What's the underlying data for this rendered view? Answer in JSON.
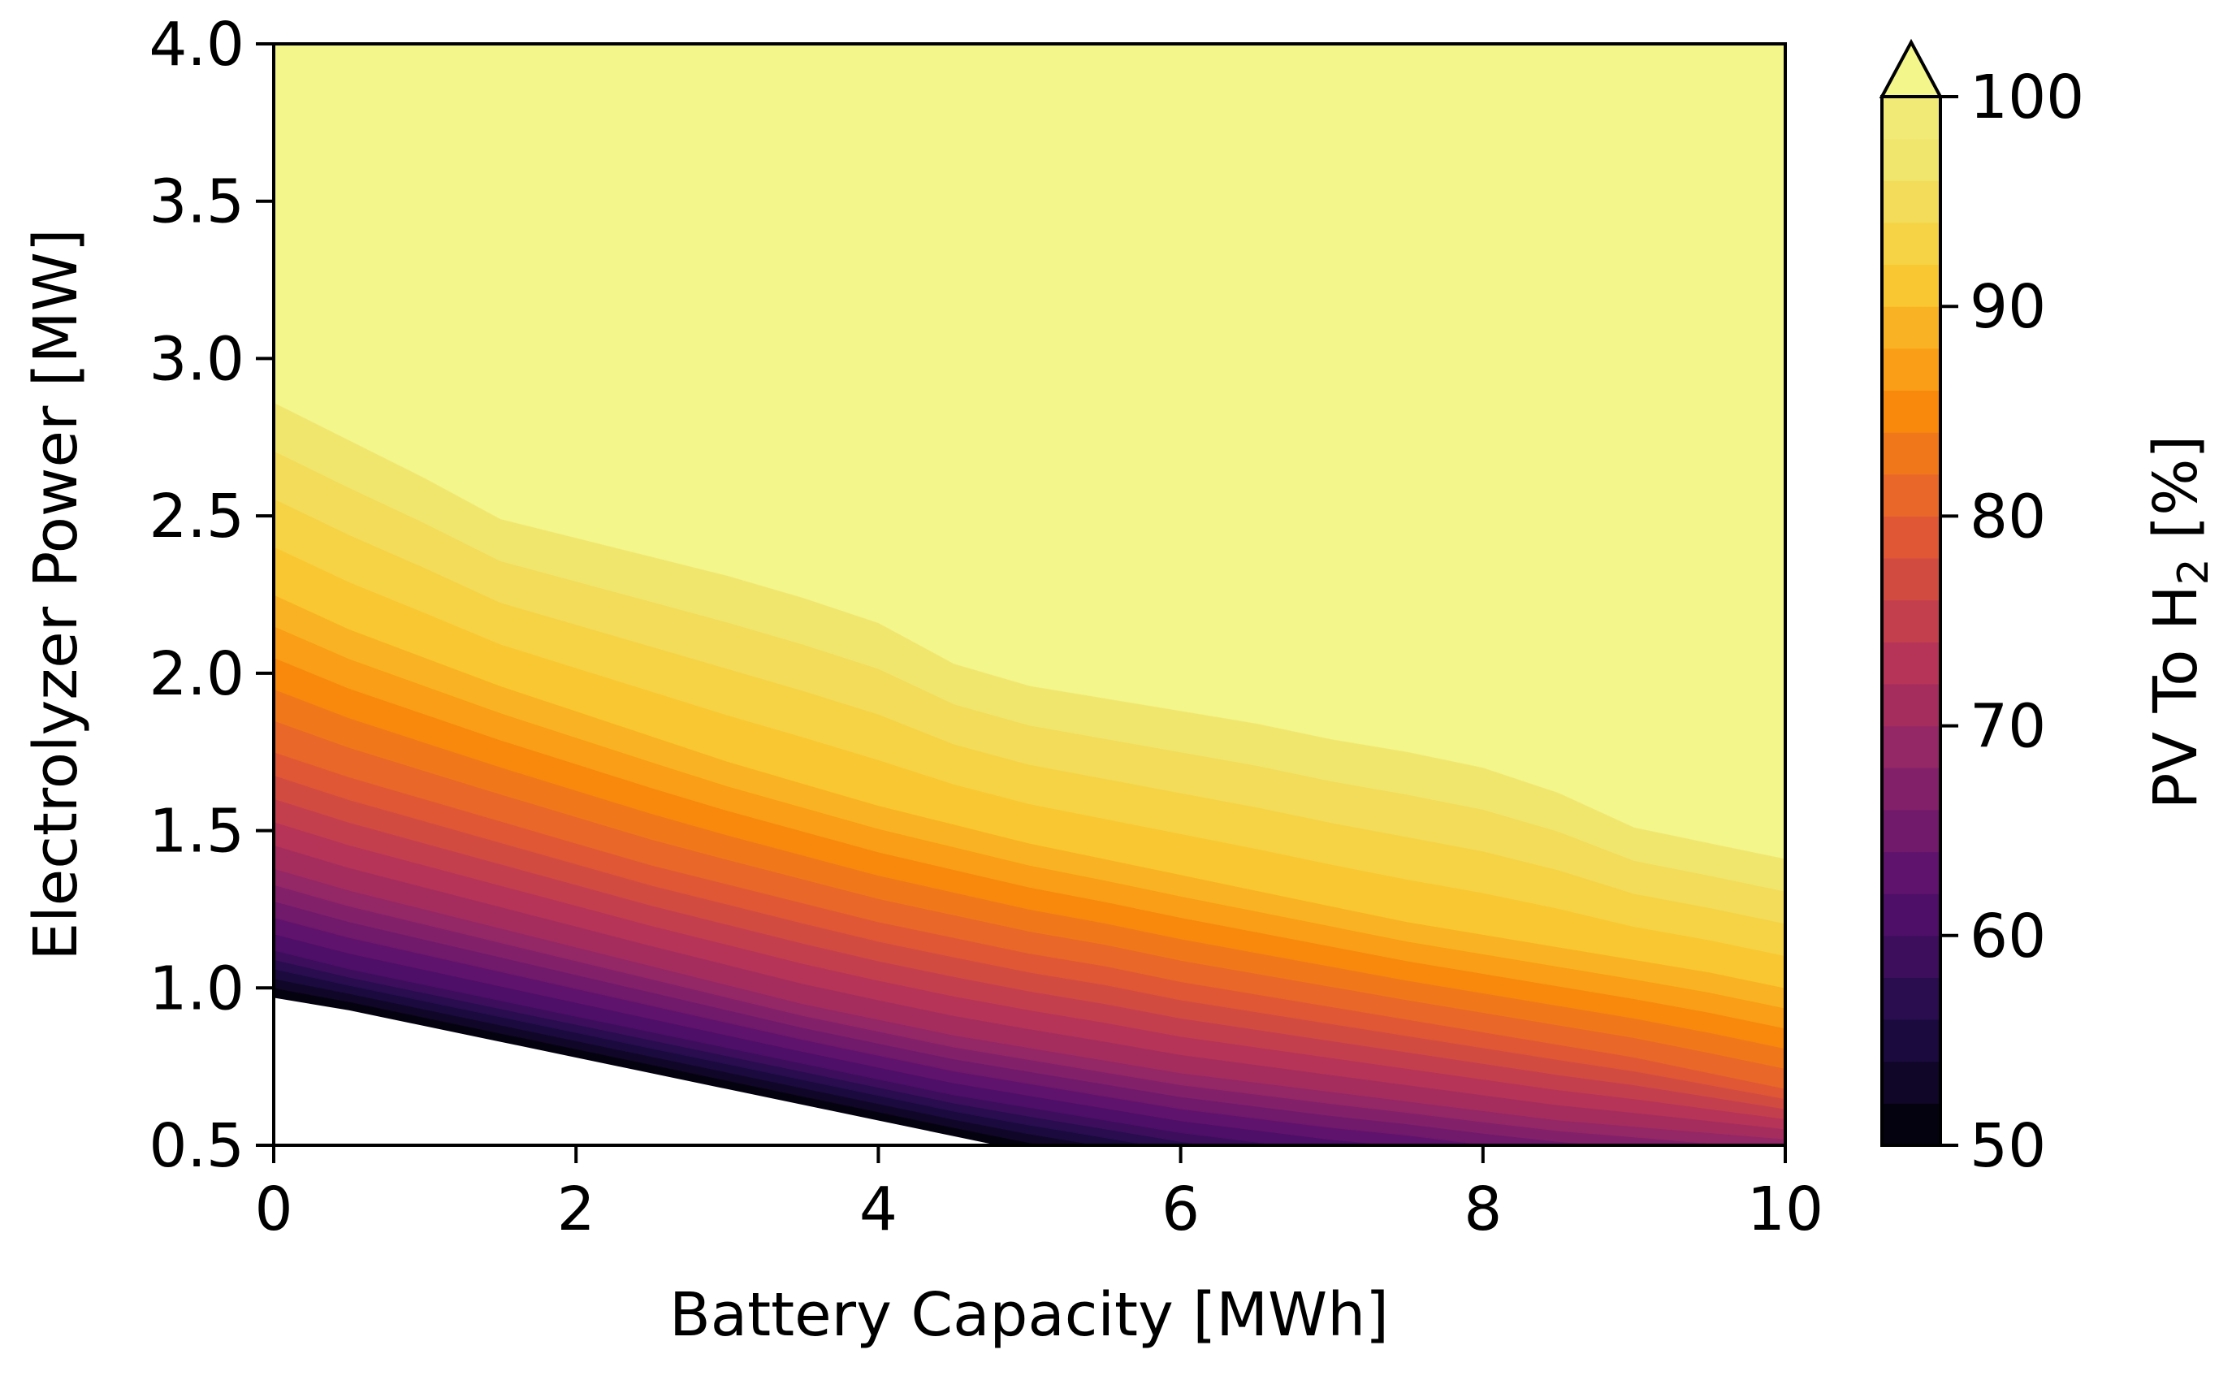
{
  "chart_data": {
    "type": "contour",
    "title": "",
    "xlabel": "Battery Capacity [MWh]",
    "ylabel": "Electrolyzer Power [MW]",
    "xlim": [
      0,
      10
    ],
    "ylim": [
      0.5,
      4.0
    ],
    "xticks": [
      "0",
      "2",
      "4",
      "6",
      "8",
      "10"
    ],
    "xtick_values": [
      0,
      2,
      4,
      6,
      8,
      10
    ],
    "yticks": [
      "0.5",
      "1.0",
      "1.5",
      "2.0",
      "2.5",
      "3.0",
      "3.5",
      "4.0"
    ],
    "ytick_values": [
      0.5,
      1.0,
      1.5,
      2.0,
      2.5,
      3.0,
      3.5,
      4.0
    ],
    "colorbar": {
      "label_main": "PV To H",
      "label_sub": "2",
      "label_tail": " [%]",
      "range": [
        50,
        100
      ],
      "ticks": [
        "50",
        "60",
        "70",
        "80",
        "90",
        "100"
      ],
      "tick_values": [
        50,
        60,
        70,
        80,
        90,
        100
      ],
      "extend": "max",
      "colormap": "inferno",
      "levels": [
        50,
        52,
        54,
        56,
        58,
        60,
        62,
        64,
        66,
        68,
        70,
        72,
        74,
        76,
        78,
        80,
        82,
        84,
        86,
        88,
        90,
        92,
        94,
        96,
        98,
        100
      ]
    },
    "x": [
      0,
      0.5,
      1,
      1.5,
      2,
      2.5,
      3,
      3.5,
      4,
      4.5,
      5,
      5.5,
      6,
      6.5,
      7,
      7.5,
      8,
      8.5,
      9,
      9.5,
      10
    ],
    "contour_lines": [
      {
        "level": 50,
        "y": [
          0.97,
          0.93,
          0.88,
          0.83,
          0.78,
          0.73,
          0.68,
          0.63,
          0.58,
          0.53,
          0.48,
          0.44,
          0.4,
          0.36,
          0.32,
          0.28,
          0.24,
          0.2,
          0.16,
          0.12,
          0.08
        ]
      },
      {
        "level": 60,
        "y": [
          1.12,
          1.06,
          1.01,
          0.96,
          0.91,
          0.86,
          0.81,
          0.76,
          0.71,
          0.66,
          0.62,
          0.58,
          0.54,
          0.51,
          0.48,
          0.46,
          0.43,
          0.41,
          0.39,
          0.37,
          0.36
        ]
      },
      {
        "level": 70,
        "y": [
          1.38,
          1.31,
          1.25,
          1.19,
          1.13,
          1.07,
          1.01,
          0.95,
          0.9,
          0.85,
          0.81,
          0.77,
          0.73,
          0.7,
          0.67,
          0.64,
          0.61,
          0.58,
          0.56,
          0.54,
          0.52
        ]
      },
      {
        "level": 80,
        "y": [
          1.75,
          1.67,
          1.6,
          1.53,
          1.46,
          1.39,
          1.33,
          1.27,
          1.21,
          1.16,
          1.11,
          1.07,
          1.02,
          0.98,
          0.94,
          0.9,
          0.86,
          0.82,
          0.78,
          0.73,
          0.68
        ]
      },
      {
        "level": 90,
        "y": [
          2.25,
          2.14,
          2.05,
          1.96,
          1.88,
          1.8,
          1.72,
          1.65,
          1.58,
          1.52,
          1.46,
          1.41,
          1.36,
          1.31,
          1.26,
          1.21,
          1.17,
          1.13,
          1.09,
          1.05,
          1.0
        ]
      },
      {
        "level": 98,
        "y": [
          2.86,
          2.74,
          2.62,
          2.49,
          2.43,
          2.37,
          2.31,
          2.24,
          2.16,
          2.03,
          1.96,
          1.92,
          1.88,
          1.84,
          1.79,
          1.75,
          1.7,
          1.62,
          1.51,
          1.46,
          1.41
        ]
      }
    ]
  }
}
